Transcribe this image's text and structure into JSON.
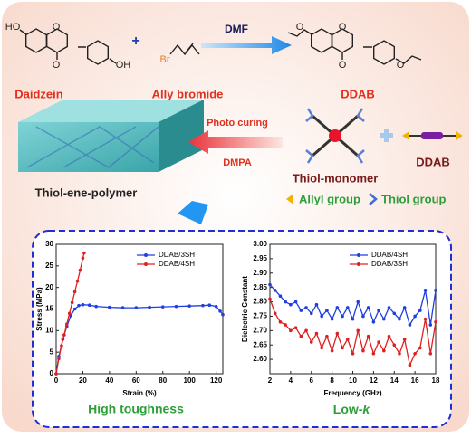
{
  "scheme": {
    "reactant_1": {
      "name": "Daidzein",
      "atoms": [
        "HO",
        "O",
        "OH",
        "O"
      ]
    },
    "plus": "+",
    "reactant_2": {
      "name": "Ally bromide",
      "atoms": [
        "Br"
      ]
    },
    "solvent": "DMF",
    "product": {
      "name": "DDAB",
      "atoms": [
        "O",
        "O",
        "O",
        "O"
      ]
    },
    "polymer": "Thiol-ene-polymer",
    "curing": "Photo curing",
    "initiator": "DMPA",
    "monomer": "Thiol-monomer",
    "crosslinker": "DDAB",
    "legend_allyl": "Allyl group",
    "legend_thiol": "Thiol group",
    "caption_left": "High toughness",
    "caption_right": {
      "text": "Low-",
      "italic": "k"
    }
  },
  "chart_data": [
    {
      "type": "line",
      "x_label": "Strain (%)",
      "y_label": "Stress (MPa)",
      "xlim": [
        0,
        125
      ],
      "xticks": [
        0,
        20,
        40,
        60,
        80,
        100,
        120
      ],
      "ylim": [
        0,
        30
      ],
      "yticks": [
        0,
        5,
        10,
        15,
        20,
        25,
        30
      ],
      "legend": "upper-right",
      "series": [
        {
          "name": "DDAB/3SH",
          "color": "#1f3fe0",
          "x": [
            0,
            2,
            5,
            8,
            11,
            14,
            17,
            20,
            25,
            30,
            40,
            50,
            60,
            70,
            80,
            90,
            100,
            110,
            115,
            120,
            123,
            125
          ],
          "values": [
            0,
            4,
            8,
            11,
            13.5,
            15,
            15.8,
            16,
            15.9,
            15.6,
            15.4,
            15.3,
            15.3,
            15.4,
            15.5,
            15.6,
            15.7,
            15.8,
            15.9,
            15.6,
            14.5,
            13.7
          ]
        },
        {
          "name": "DDAB/4SH",
          "color": "#e02020",
          "x": [
            0,
            2,
            4,
            6,
            8,
            10,
            12,
            14,
            16,
            18,
            20,
            21
          ],
          "values": [
            0,
            3.5,
            6.5,
            9,
            11.5,
            14,
            16.5,
            19,
            21.5,
            24,
            26.8,
            28
          ]
        }
      ]
    },
    {
      "type": "line",
      "x_label": "Frequency (GHz)",
      "y_label": "Dielectric Constant",
      "xlim": [
        2,
        18
      ],
      "xticks": [
        2,
        4,
        6,
        8,
        10,
        12,
        14,
        16,
        18
      ],
      "ylim": [
        2.55,
        3.0
      ],
      "yticks": [
        {
          "value": 2.6,
          "label": "2.60"
        },
        {
          "value": 2.65,
          "label": "2.65"
        },
        {
          "value": 2.7,
          "label": "2.70"
        },
        {
          "value": 2.75,
          "label": "2.75"
        },
        {
          "value": 2.8,
          "label": "2.80"
        },
        {
          "value": 2.85,
          "label": "2.85"
        },
        {
          "value": 2.9,
          "label": "2.90"
        },
        {
          "value": 2.95,
          "label": "2.95"
        },
        {
          "value": 3.0,
          "label": "3.00"
        }
      ],
      "legend": "upper-right",
      "series": [
        {
          "name": "DDAB/4SH",
          "color": "#1f3fe0",
          "x": [
            2,
            2.5,
            3,
            3.5,
            4,
            4.5,
            5,
            5.5,
            6,
            6.5,
            7,
            7.5,
            8,
            8.5,
            9,
            9.5,
            10,
            10.5,
            11,
            11.5,
            12,
            12.5,
            13,
            13.5,
            14,
            14.5,
            15,
            15.5,
            16,
            16.5,
            17,
            17.5,
            18
          ],
          "values": [
            2.86,
            2.84,
            2.82,
            2.8,
            2.79,
            2.8,
            2.77,
            2.78,
            2.76,
            2.79,
            2.75,
            2.77,
            2.74,
            2.78,
            2.75,
            2.78,
            2.74,
            2.8,
            2.75,
            2.78,
            2.73,
            2.77,
            2.74,
            2.78,
            2.76,
            2.74,
            2.78,
            2.72,
            2.75,
            2.77,
            2.84,
            2.72,
            2.84
          ]
        },
        {
          "name": "DDAB/3SH",
          "color": "#e02020",
          "x": [
            2,
            2.5,
            3,
            3.5,
            4,
            4.5,
            5,
            5.5,
            6,
            6.5,
            7,
            7.5,
            8,
            8.5,
            9,
            9.5,
            10,
            10.5,
            11,
            11.5,
            12,
            12.5,
            13,
            13.5,
            14,
            14.5,
            15,
            15.5,
            16,
            16.5,
            17,
            17.5,
            18
          ],
          "values": [
            2.81,
            2.76,
            2.73,
            2.72,
            2.7,
            2.71,
            2.68,
            2.7,
            2.66,
            2.69,
            2.64,
            2.68,
            2.63,
            2.69,
            2.64,
            2.67,
            2.62,
            2.7,
            2.63,
            2.68,
            2.62,
            2.66,
            2.63,
            2.68,
            2.65,
            2.62,
            2.67,
            2.58,
            2.62,
            2.64,
            2.74,
            2.62,
            2.73
          ]
        }
      ]
    }
  ]
}
